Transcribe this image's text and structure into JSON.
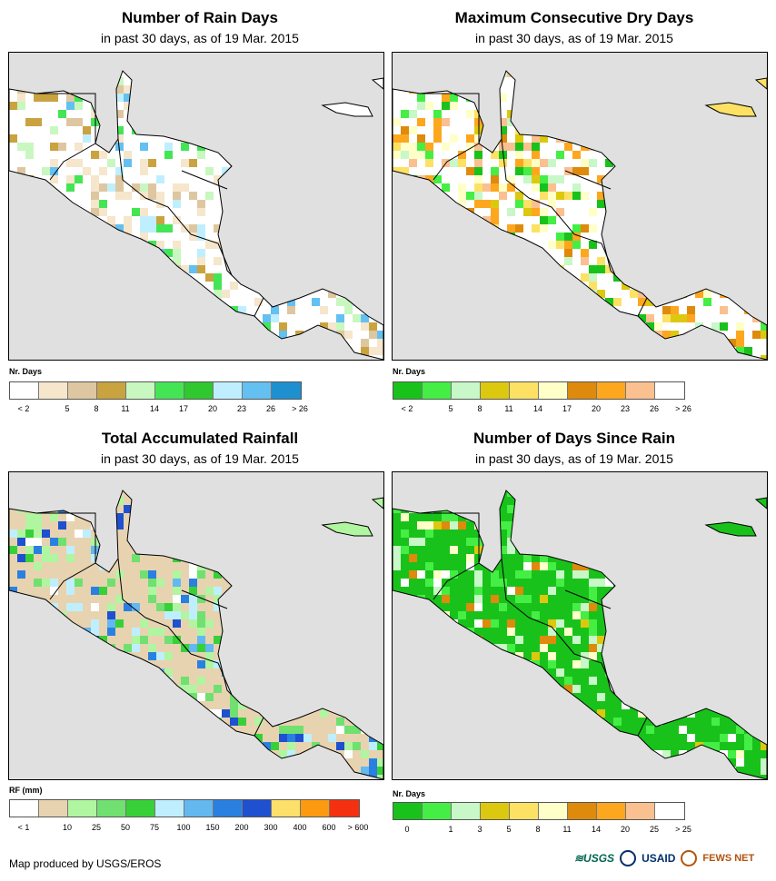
{
  "panels": [
    {
      "title": "Number of Rain Days",
      "subtitle": "in past 30 days, as of 19 Mar. 2015",
      "legend_title": "Nr. Days",
      "legend_colors": [
        "#ffffff",
        "#f5e6cc",
        "#dec7a0",
        "#c9a340",
        "#c8f7c0",
        "#44e555",
        "#2fc82f",
        "#bfefff",
        "#63c0f0",
        "#1e90d0"
      ],
      "legend_labels": [
        "< 2",
        "5",
        "8",
        "11",
        "14",
        "17",
        "20",
        "23",
        "26",
        "> 26"
      ]
    },
    {
      "title": "Maximum Consecutive Dry Days",
      "subtitle": "in past 30 days, as of 19 Mar. 2015",
      "legend_title": "Nr. Days",
      "legend_colors": [
        "#19c21b",
        "#44ee44",
        "#c8f7c8",
        "#ddc810",
        "#fce165",
        "#ffffc8",
        "#de8a0c",
        "#fda71f",
        "#fac090",
        "#ffffff"
      ],
      "legend_labels": [
        "< 2",
        "5",
        "8",
        "11",
        "14",
        "17",
        "20",
        "23",
        "26",
        "> 26"
      ]
    },
    {
      "title": "Total Accumulated Rainfall",
      "subtitle": "in past 30 days, as of 19 Mar. 2015",
      "legend_title": "RF (mm)",
      "legend_colors": [
        "#ffffff",
        "#e8d3b0",
        "#b0f5a0",
        "#70e070",
        "#38d038",
        "#bfefff",
        "#63b8f0",
        "#2a80e0",
        "#1e50d0",
        "#fde06a",
        "#fd9a10",
        "#f53010"
      ],
      "legend_labels": [
        "< 1",
        "10",
        "25",
        "50",
        "75",
        "100",
        "150",
        "200",
        "300",
        "400",
        "600",
        "> 600"
      ]
    },
    {
      "title": "Number of Days Since Rain",
      "subtitle": "in past 30 days, as of 19 Mar. 2015",
      "legend_title": "Nr. Days",
      "legend_colors": [
        "#19c21b",
        "#44ee44",
        "#c8f7c8",
        "#ddc810",
        "#fce165",
        "#ffffc8",
        "#de8a0c",
        "#fda71f",
        "#fac090",
        "#ffffff"
      ],
      "legend_labels": [
        "0",
        "1",
        "3",
        "5",
        "8",
        "11",
        "14",
        "20",
        "25",
        "> 25"
      ]
    }
  ],
  "footer": "Map produced by USGS/EROS",
  "logos": {
    "usgs": "≋USGS",
    "usaid": "USAID",
    "fews": "FEWS NET"
  }
}
